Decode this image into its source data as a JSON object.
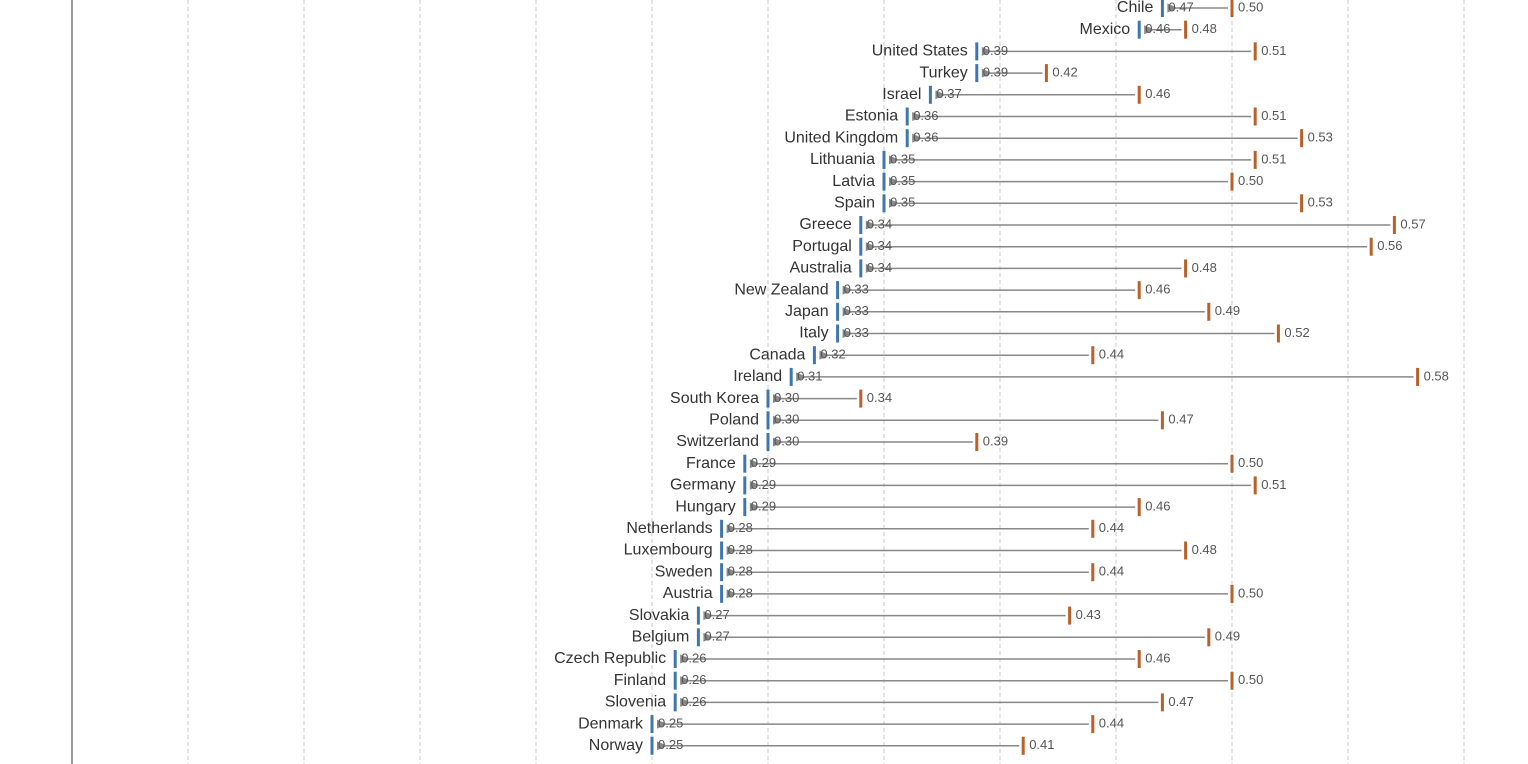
{
  "chart_data": {
    "type": "dumbbell",
    "categories": [
      "Chile",
      "Mexico",
      "United States",
      "Turkey",
      "Israel",
      "Estonia",
      "United Kingdom",
      "Lithuania",
      "Latvia",
      "Spain",
      "Greece",
      "Portugal",
      "Australia",
      "New Zealand",
      "Japan",
      "Italy",
      "Canada",
      "Ireland",
      "South Korea",
      "Poland",
      "Switzerland",
      "France",
      "Germany",
      "Hungary",
      "Netherlands",
      "Luxembourg",
      "Sweden",
      "Austria",
      "Slovakia",
      "Belgium",
      "Czech Republic",
      "Finland",
      "Slovenia",
      "Denmark",
      "Norway"
    ],
    "series": [
      {
        "color": "#3d76b0",
        "values": [
          0.47,
          0.46,
          0.39,
          0.39,
          0.37,
          0.36,
          0.36,
          0.35,
          0.35,
          0.35,
          0.34,
          0.34,
          0.34,
          0.33,
          0.33,
          0.33,
          0.32,
          0.31,
          0.3,
          0.3,
          0.3,
          0.29,
          0.29,
          0.29,
          0.28,
          0.28,
          0.28,
          0.28,
          0.27,
          0.27,
          0.26,
          0.26,
          0.26,
          0.25,
          0.25
        ],
        "value_labels": [
          "0.47",
          "0.46",
          "0.39",
          "0.39",
          "0.37",
          "0.36",
          "0.36",
          "0.35",
          "0.35",
          "0.35",
          "0.34",
          "0.34",
          "0.34",
          "0.33",
          "0.33",
          "0.33",
          "0.32",
          "0.31",
          "0.30",
          "0.30",
          "0.30",
          "0.29",
          "0.29",
          "0.29",
          "0.28",
          "0.28",
          "0.28",
          "0.28",
          "0.27",
          "0.27",
          "0.26",
          "0.26",
          "0.26",
          "0.25",
          "0.25"
        ]
      },
      {
        "color": "#b8612a",
        "values": [
          0.5,
          0.48,
          0.51,
          0.42,
          0.46,
          0.51,
          0.53,
          0.51,
          0.5,
          0.53,
          0.57,
          0.56,
          0.48,
          0.46,
          0.49,
          0.52,
          0.44,
          0.58,
          0.34,
          0.47,
          0.39,
          0.5,
          0.51,
          0.46,
          0.44,
          0.48,
          0.44,
          0.5,
          0.43,
          0.49,
          0.46,
          0.5,
          0.47,
          0.44,
          0.41
        ],
        "value_labels": [
          "0.50",
          "0.48",
          "0.51",
          "0.42",
          "0.46",
          "0.51",
          "0.53",
          "0.51",
          "0.50",
          "0.53",
          "0.57",
          "0.56",
          "0.48",
          "0.46",
          "0.49",
          "0.52",
          "0.44",
          "0.58",
          "0.34",
          "0.47",
          "0.39",
          "0.50",
          "0.51",
          "0.46",
          "0.44",
          "0.48",
          "0.44",
          "0.50",
          "0.43",
          "0.49",
          "0.46",
          "0.50",
          "0.47",
          "0.44",
          "0.41"
        ]
      }
    ],
    "arrow_color": "#888888",
    "xlim": [
      0,
      0.6
    ],
    "xticks": [
      0,
      0.05,
      0.1,
      0.15,
      0.2,
      0.25,
      0.3,
      0.35,
      0.4,
      0.45,
      0.5,
      0.55,
      0.6
    ],
    "grid": true
  }
}
